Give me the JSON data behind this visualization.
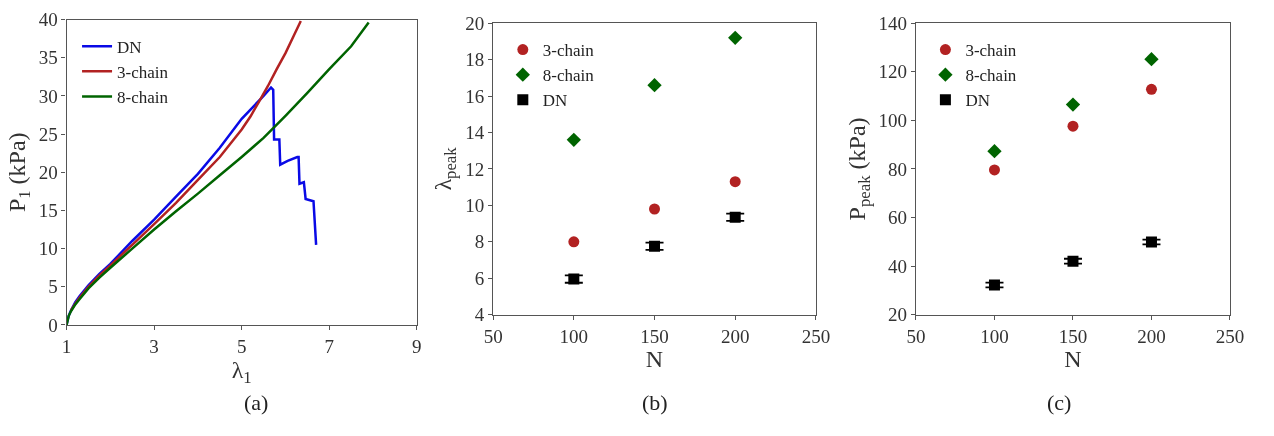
{
  "chart_data": [
    {
      "type": "line",
      "xlabel": "λ$_{1}$",
      "ylabel": "P$_{1}$ (kPa)",
      "annotations": [
        "(a)"
      ],
      "xlim": [
        1,
        9
      ],
      "xticks": [
        1,
        3,
        5,
        7,
        9
      ],
      "ylim": [
        0,
        40
      ],
      "yticks": [
        0,
        5,
        10,
        15,
        20,
        25,
        30,
        35,
        40
      ],
      "legend": "top left",
      "series": [
        {
          "name": "DN",
          "color": "#0a0ae6",
          "x": [
            1,
            1.05,
            1.1,
            1.2,
            1.3,
            1.5,
            1.75,
            2,
            2.5,
            3,
            3.5,
            4,
            4.5,
            5,
            5.3,
            5.5,
            5.67,
            5.72,
            5.74,
            5.86,
            5.88,
            6.05,
            6.27,
            6.3,
            6.32,
            6.42,
            6.46,
            6.64,
            6.7
          ],
          "values": [
            0,
            1.2,
            1.9,
            3.0,
            3.8,
            5.2,
            6.7,
            8,
            11,
            13.8,
            16.8,
            19.8,
            23.2,
            27,
            28.8,
            30,
            31.1,
            30.8,
            24.3,
            24.3,
            21,
            21.5,
            22,
            22,
            18.5,
            18.7,
            16.5,
            16.2,
            10.5
          ]
        },
        {
          "name": "3-chain",
          "color": "#b22222",
          "x": [
            1.1,
            1.2,
            1.3,
            1.5,
            1.75,
            2,
            2.5,
            3,
            3.5,
            4,
            4.5,
            5,
            5.2,
            5.4,
            5.6,
            5.8,
            6,
            6.2,
            6.35
          ],
          "values": [
            1.9,
            2.8,
            3.6,
            5,
            6.5,
            7.8,
            10.5,
            13.2,
            16,
            19,
            22,
            25.6,
            27.3,
            29.3,
            31.3,
            33.5,
            35.6,
            38,
            39.8
          ]
        },
        {
          "name": "8-chain",
          "color": "#006400",
          "x": [
            1,
            1.05,
            1.1,
            1.2,
            1.3,
            1.5,
            1.75,
            2,
            2.5,
            3,
            3.5,
            4,
            4.5,
            5,
            5.5,
            6,
            6.5,
            7,
            7.5,
            7.9
          ],
          "values": [
            0,
            1.2,
            1.8,
            2.7,
            3.4,
            4.8,
            6.2,
            7.5,
            10,
            12.5,
            14.9,
            17.2,
            19.6,
            22,
            24.5,
            27.4,
            30.4,
            33.5,
            36.5,
            39.6
          ]
        }
      ]
    },
    {
      "type": "scatter",
      "xlabel": "N",
      "ylabel": "λ$_{peak}$",
      "annotations": [
        "(b)"
      ],
      "xlim": [
        50,
        250
      ],
      "xticks": [
        50,
        100,
        150,
        200,
        250
      ],
      "ylim": [
        4,
        20
      ],
      "yticks": [
        4,
        6,
        8,
        10,
        12,
        14,
        16,
        18,
        20
      ],
      "legend": "top left",
      "series": [
        {
          "name": "3-chain",
          "color": "#b22222",
          "marker": "circle",
          "x": [
            100,
            150,
            200
          ],
          "values": [
            8.0,
            9.8,
            11.3
          ]
        },
        {
          "name": "8-chain",
          "color": "#006400",
          "marker": "diamond",
          "x": [
            100,
            150,
            200
          ],
          "values": [
            13.6,
            16.6,
            19.2
          ]
        },
        {
          "name": "DN",
          "color": "#000000",
          "marker": "square",
          "x": [
            100,
            150,
            200
          ],
          "values": [
            5.95,
            7.75,
            9.35
          ],
          "errors": [
            0.2,
            0.2,
            0.2
          ]
        }
      ]
    },
    {
      "type": "scatter",
      "xlabel": "N",
      "ylabel": "P$_{peak}$ (kPa)",
      "annotations": [
        "(c)"
      ],
      "xlim": [
        50,
        250
      ],
      "xticks": [
        50,
        100,
        150,
        200,
        250
      ],
      "ylim": [
        20,
        140
      ],
      "yticks": [
        20,
        40,
        60,
        80,
        100,
        120,
        140
      ],
      "legend": "top left",
      "series": [
        {
          "name": "3-chain",
          "color": "#b22222",
          "marker": "circle",
          "x": [
            100,
            150,
            200
          ],
          "values": [
            79.6,
            97.6,
            112.8
          ]
        },
        {
          "name": "8-chain",
          "color": "#006400",
          "marker": "diamond",
          "x": [
            100,
            150,
            200
          ],
          "values": [
            87.3,
            106.5,
            125.2
          ]
        },
        {
          "name": "DN",
          "color": "#000000",
          "marker": "square",
          "x": [
            100,
            150,
            200
          ],
          "values": [
            32.2,
            42.0,
            49.9
          ],
          "errors": [
            1,
            1,
            1
          ]
        }
      ]
    }
  ]
}
